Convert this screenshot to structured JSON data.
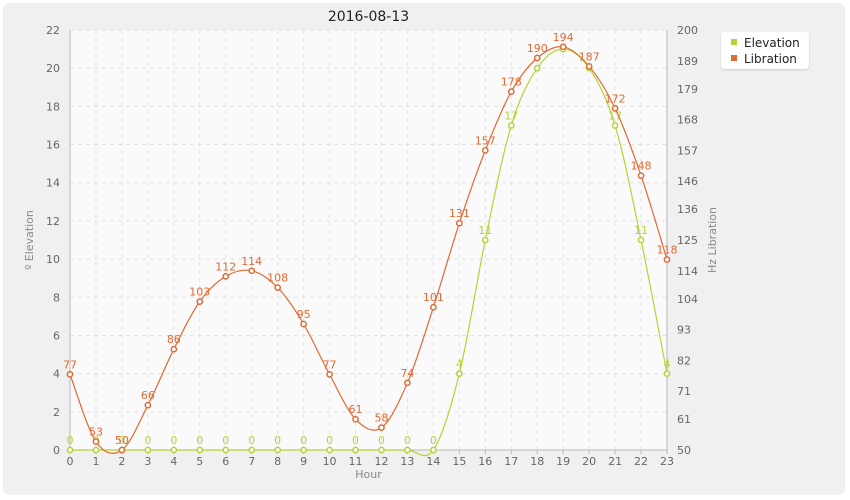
{
  "chart_data": {
    "type": "line",
    "title": "2016-08-13",
    "xlabel": "Hour",
    "ylabel_left": "º Elevation",
    "ylabel_right": "Hz Libration",
    "x": [
      0,
      1,
      2,
      3,
      4,
      5,
      6,
      7,
      8,
      9,
      10,
      11,
      12,
      13,
      14,
      15,
      16,
      17,
      18,
      19,
      20,
      21,
      22,
      23
    ],
    "x_ticks": [
      "0",
      "1",
      "2",
      "3",
      "4",
      "5",
      "6",
      "7",
      "8",
      "9",
      "10",
      "11",
      "12",
      "13",
      "14",
      "15",
      "16",
      "17",
      "18",
      "19",
      "20",
      "21",
      "22",
      "23"
    ],
    "ylim_left": [
      0,
      22
    ],
    "ylim_right": [
      50,
      200
    ],
    "y_ticks_left": [
      "0",
      "2",
      "4",
      "6",
      "8",
      "10",
      "12",
      "14",
      "16",
      "18",
      "20",
      "22"
    ],
    "y_ticks_right": [
      "50",
      "61",
      "71",
      "82",
      "93",
      "104",
      "114",
      "125",
      "136",
      "146",
      "157",
      "168",
      "179",
      "189",
      "200"
    ],
    "grid": true,
    "legend_position": "top-right",
    "series": [
      {
        "name": "Elevation",
        "axis": "left",
        "color": "#b5d334",
        "values": [
          0,
          0,
          0,
          0,
          0,
          0,
          0,
          0,
          0,
          0,
          0,
          0,
          0,
          0,
          0,
          4,
          11,
          17,
          20,
          21,
          20,
          17,
          11,
          4
        ],
        "labels": [
          "0",
          "0",
          "0",
          "0",
          "0",
          "0",
          "0",
          "0",
          "0",
          "0",
          "0",
          "0",
          "0",
          "0",
          "0",
          "4",
          "11",
          "17",
          "",
          "",
          "",
          "17",
          "11",
          "4"
        ]
      },
      {
        "name": "Libration",
        "axis": "right",
        "color": "#e06a33",
        "values": [
          77,
          53,
          50,
          66,
          86,
          103,
          112,
          114,
          108,
          95,
          77,
          61,
          58,
          74,
          101,
          131,
          157,
          178,
          190,
          194,
          187,
          172,
          148,
          118
        ],
        "labels": [
          "77",
          "53",
          "50",
          "66",
          "86",
          "103",
          "112",
          "114",
          "108",
          "95",
          "77",
          "61",
          "58",
          "74",
          "101",
          "131",
          "157",
          "178",
          "190",
          "194",
          "187",
          "172",
          "148",
          "118"
        ]
      }
    ]
  }
}
